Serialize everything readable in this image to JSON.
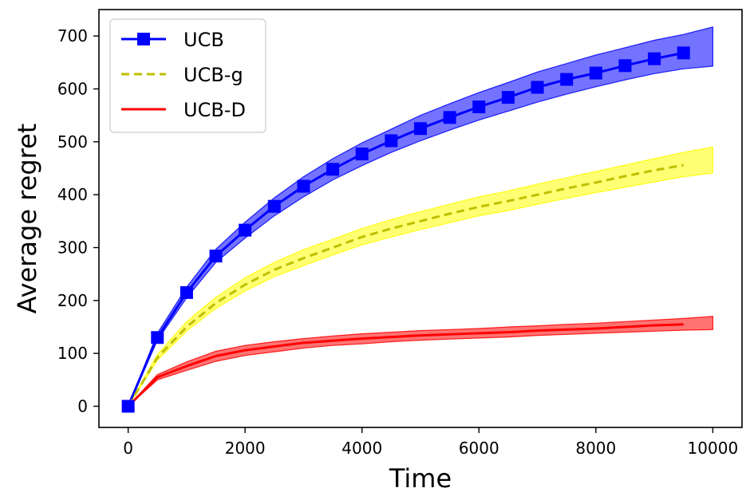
{
  "chart_data": {
    "type": "line",
    "title": "",
    "xlabel": "Time",
    "ylabel": "Average regret",
    "xlim": [
      -500,
      10500
    ],
    "ylim": [
      -40,
      750
    ],
    "xticks": [
      0,
      2000,
      4000,
      6000,
      8000,
      10000
    ],
    "yticks": [
      0,
      100,
      200,
      300,
      400,
      500,
      600,
      700
    ],
    "grid": false,
    "legend_position": "upper-left",
    "series": [
      {
        "name": "UCB",
        "color": "#0000ff",
        "band_color": "#0000ff",
        "line_style": "solid",
        "marker": "square",
        "x": [
          0,
          500,
          1000,
          1500,
          2000,
          2500,
          3000,
          3500,
          4000,
          4500,
          5000,
          5500,
          6000,
          6500,
          7000,
          7500,
          8000,
          8500,
          9000,
          9500
        ],
        "y": [
          0,
          130,
          215,
          284,
          333,
          378,
          416,
          448,
          477,
          502,
          525,
          546,
          566,
          584,
          603,
          618,
          630,
          644,
          657,
          668
        ],
        "band_x": [
          0,
          500,
          1000,
          1500,
          2000,
          2500,
          3000,
          3500,
          4000,
          4500,
          5000,
          5500,
          6000,
          6500,
          7000,
          7500,
          8000,
          8500,
          9000,
          9500,
          10000
        ],
        "band_lower": [
          0,
          125,
          205,
          272,
          318,
          360,
          396,
          428,
          455,
          480,
          502,
          522,
          541,
          558,
          575,
          590,
          604,
          617,
          629,
          638,
          643
        ],
        "band_upper": [
          0,
          138,
          225,
          297,
          348,
          394,
          434,
          468,
          498,
          524,
          550,
          572,
          593,
          612,
          632,
          648,
          664,
          678,
          692,
          703,
          717
        ]
      },
      {
        "name": "UCB-g",
        "color": "#bfbf00",
        "band_color": "#ffff00",
        "line_style": "dashed",
        "marker": "none",
        "x": [
          0,
          500,
          1000,
          1500,
          2000,
          2500,
          3000,
          3500,
          4000,
          4500,
          5000,
          5500,
          6000,
          6500,
          7000,
          7500,
          8000,
          8500,
          9000,
          9500
        ],
        "y": [
          0,
          92,
          150,
          195,
          230,
          258,
          280,
          300,
          320,
          336,
          350,
          364,
          377,
          388,
          400,
          412,
          423,
          435,
          446,
          456
        ],
        "band_x": [
          0,
          500,
          1000,
          1500,
          2000,
          2500,
          3000,
          3500,
          4000,
          4500,
          5000,
          5500,
          6000,
          6500,
          7000,
          7500,
          8000,
          8500,
          9000,
          9500,
          10000
        ],
        "band_lower": [
          0,
          87,
          142,
          185,
          218,
          245,
          266,
          286,
          305,
          320,
          334,
          347,
          360,
          370,
          382,
          393,
          404,
          414,
          424,
          434,
          441
        ],
        "band_upper": [
          0,
          98,
          160,
          206,
          243,
          272,
          296,
          316,
          336,
          353,
          368,
          382,
          396,
          407,
          420,
          432,
          444,
          456,
          468,
          480,
          490
        ]
      },
      {
        "name": "UCB-D",
        "color": "#ff0000",
        "band_color": "#ff0000",
        "line_style": "solid",
        "marker": "none",
        "x": [
          0,
          500,
          1000,
          1500,
          2000,
          2500,
          3000,
          3500,
          4000,
          4500,
          5000,
          5500,
          6000,
          6500,
          7000,
          7500,
          8000,
          8500,
          9000,
          9500
        ],
        "y": [
          0,
          55,
          76,
          95,
          106,
          113,
          120,
          124,
          128,
          131,
          134,
          136,
          138,
          140,
          143,
          145,
          147,
          150,
          153,
          155
        ],
        "band_x": [
          0,
          500,
          1000,
          1500,
          2000,
          2500,
          3000,
          3500,
          4000,
          4500,
          5000,
          5500,
          6000,
          6500,
          7000,
          7500,
          8000,
          8500,
          9000,
          9500,
          10000
        ],
        "band_lower": [
          0,
          50,
          68,
          85,
          96,
          103,
          110,
          115,
          118,
          122,
          125,
          127,
          129,
          131,
          134,
          136,
          138,
          140,
          142,
          144,
          145
        ],
        "band_upper": [
          0,
          60,
          84,
          104,
          115,
          122,
          128,
          133,
          137,
          140,
          143,
          145,
          147,
          150,
          152,
          155,
          157,
          160,
          163,
          166,
          170
        ]
      }
    ]
  }
}
